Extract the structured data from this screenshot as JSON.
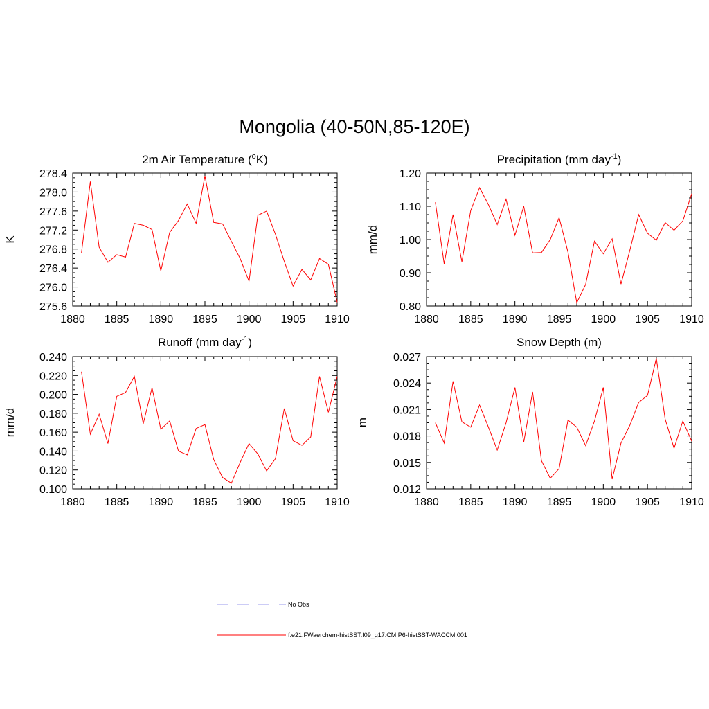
{
  "figure": {
    "title": "Mongolia (40-50N,85-120E)"
  },
  "legend": {
    "entries": [
      {
        "label": "No Obs",
        "color": "#9999ee",
        "dash": "dashed"
      },
      {
        "label": "f.e21.FWaerchem-histSST.f09_g17.CMIP6-histSST-WACCM.001",
        "color": "#ff0000",
        "dash": "solid"
      }
    ]
  },
  "chart_data": [
    {
      "type": "line",
      "title_main": "2m Air Temperature (",
      "title_sup": "o",
      "title_end": "K)",
      "ylabel": "K",
      "xlim": [
        1880,
        1910
      ],
      "ylim": [
        275.6,
        278.4
      ],
      "xticks": [
        1880,
        1885,
        1890,
        1895,
        1900,
        1905,
        1910
      ],
      "xtick_labels": [
        "1880",
        "1885",
        "1890",
        "1895",
        "1900",
        "1905",
        "1910"
      ],
      "yticks": [
        275.6,
        276.0,
        276.4,
        276.8,
        277.2,
        277.6,
        278.0,
        278.4
      ],
      "ytick_labels": [
        "275.6",
        "276.0",
        "276.4",
        "276.8",
        "277.2",
        "277.6",
        "278.0",
        "278.4"
      ],
      "series": [
        {
          "color": "#ff0000",
          "x": [
            1881,
            1882,
            1883,
            1884,
            1885,
            1886,
            1887,
            1888,
            1889,
            1890,
            1891,
            1892,
            1893,
            1894,
            1895,
            1896,
            1897,
            1898,
            1899,
            1900,
            1901,
            1902,
            1903,
            1904,
            1905,
            1906,
            1907,
            1908,
            1909,
            1910
          ],
          "values": [
            276.72,
            278.22,
            276.84,
            276.52,
            276.68,
            276.63,
            277.34,
            277.3,
            277.21,
            276.34,
            277.15,
            277.4,
            277.75,
            277.34,
            278.34,
            277.36,
            277.33,
            276.96,
            276.6,
            276.12,
            277.51,
            277.6,
            277.11,
            276.54,
            276.02,
            276.37,
            276.15,
            276.6,
            276.48,
            275.68
          ]
        }
      ]
    },
    {
      "type": "line",
      "title_main": "Precipitation (mm day",
      "title_sup": "-1",
      "title_end": ")",
      "ylabel": "mm/d",
      "xlim": [
        1880,
        1910
      ],
      "ylim": [
        0.8,
        1.2
      ],
      "xticks": [
        1880,
        1885,
        1890,
        1895,
        1900,
        1905,
        1910
      ],
      "xtick_labels": [
        "1880",
        "1885",
        "1890",
        "1895",
        "1900",
        "1905",
        "1910"
      ],
      "yticks": [
        0.8,
        0.9,
        1.0,
        1.1,
        1.2
      ],
      "ytick_labels": [
        "0.80",
        "0.90",
        "1.00",
        "1.10",
        "1.20"
      ],
      "series": [
        {
          "color": "#ff0000",
          "x": [
            1881,
            1882,
            1883,
            1884,
            1885,
            1886,
            1887,
            1888,
            1889,
            1890,
            1891,
            1892,
            1893,
            1894,
            1895,
            1896,
            1897,
            1898,
            1899,
            1900,
            1901,
            1902,
            1903,
            1904,
            1905,
            1906,
            1907,
            1908,
            1909,
            1910
          ],
          "values": [
            1.112,
            0.927,
            1.075,
            0.933,
            1.087,
            1.156,
            1.105,
            1.045,
            1.121,
            1.013,
            1.1,
            0.96,
            0.961,
            1.0,
            1.066,
            0.962,
            0.81,
            0.865,
            0.995,
            0.957,
            1.002,
            0.866,
            0.967,
            1.075,
            1.019,
            0.998,
            1.051,
            1.028,
            1.056,
            1.138
          ]
        }
      ]
    },
    {
      "type": "line",
      "title_main": "Runoff (mm day",
      "title_sup": "-1",
      "title_end": ")",
      "ylabel": "mm/d",
      "xlim": [
        1880,
        1910
      ],
      "ylim": [
        0.1,
        0.24
      ],
      "xticks": [
        1880,
        1885,
        1890,
        1895,
        1900,
        1905,
        1910
      ],
      "xtick_labels": [
        "1880",
        "1885",
        "1890",
        "1895",
        "1900",
        "1905",
        "1910"
      ],
      "yticks": [
        0.1,
        0.12,
        0.14,
        0.16,
        0.18,
        0.2,
        0.22,
        0.24
      ],
      "ytick_labels": [
        "0.100",
        "0.120",
        "0.140",
        "0.160",
        "0.180",
        "0.200",
        "0.220",
        "0.240"
      ],
      "series": [
        {
          "color": "#ff0000",
          "x": [
            1881,
            1882,
            1883,
            1884,
            1885,
            1886,
            1887,
            1888,
            1889,
            1890,
            1891,
            1892,
            1893,
            1894,
            1895,
            1896,
            1897,
            1898,
            1899,
            1900,
            1901,
            1902,
            1903,
            1904,
            1905,
            1906,
            1907,
            1908,
            1909,
            1910
          ],
          "values": [
            0.224,
            0.158,
            0.179,
            0.148,
            0.198,
            0.202,
            0.219,
            0.169,
            0.207,
            0.163,
            0.172,
            0.14,
            0.136,
            0.164,
            0.168,
            0.131,
            0.112,
            0.106,
            0.128,
            0.148,
            0.137,
            0.119,
            0.132,
            0.185,
            0.151,
            0.146,
            0.155,
            0.219,
            0.181,
            0.219
          ]
        }
      ]
    },
    {
      "type": "line",
      "title_main": "Snow Depth (m)",
      "title_sup": "",
      "title_end": "",
      "ylabel": "m",
      "xlim": [
        1880,
        1910
      ],
      "ylim": [
        0.012,
        0.027
      ],
      "xticks": [
        1880,
        1885,
        1890,
        1895,
        1900,
        1905,
        1910
      ],
      "xtick_labels": [
        "1880",
        "1885",
        "1890",
        "1895",
        "1900",
        "1905",
        "1910"
      ],
      "yticks": [
        0.012,
        0.015,
        0.018,
        0.021,
        0.024,
        0.027
      ],
      "ytick_labels": [
        "0.012",
        "0.015",
        "0.018",
        "0.021",
        "0.024",
        "0.027"
      ],
      "series": [
        {
          "color": "#ff0000",
          "x": [
            1881,
            1882,
            1883,
            1884,
            1885,
            1886,
            1887,
            1888,
            1889,
            1890,
            1891,
            1892,
            1893,
            1894,
            1895,
            1896,
            1897,
            1898,
            1899,
            1900,
            1901,
            1902,
            1903,
            1904,
            1905,
            1906,
            1907,
            1908,
            1909,
            1910
          ],
          "values": [
            0.0195,
            0.0172,
            0.0242,
            0.0196,
            0.019,
            0.0215,
            0.019,
            0.0164,
            0.0195,
            0.0235,
            0.0173,
            0.023,
            0.0152,
            0.0132,
            0.0143,
            0.0198,
            0.019,
            0.0169,
            0.0197,
            0.0235,
            0.0131,
            0.0172,
            0.0192,
            0.0218,
            0.0226,
            0.0268,
            0.0199,
            0.0166,
            0.0197,
            0.0174
          ]
        }
      ]
    }
  ]
}
